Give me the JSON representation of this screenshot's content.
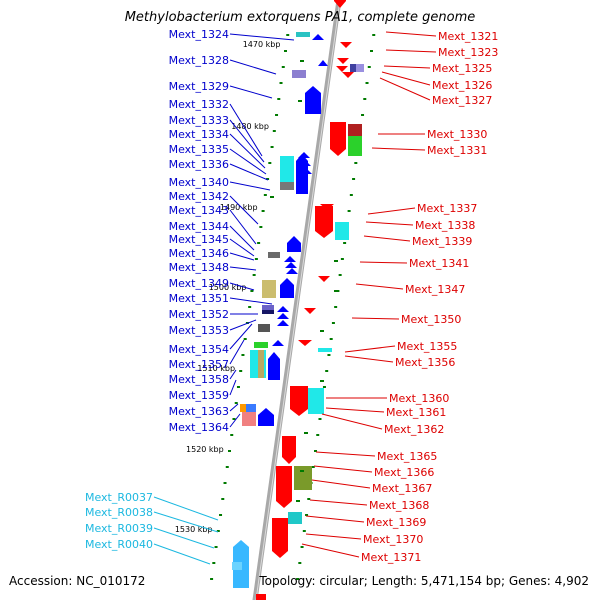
{
  "title": "Methylobacterium extorquens PA1, complete genome",
  "footer": {
    "accession": "Accession: NC_010172",
    "topology": "Topology: circular; Length: 5,471,154 bp; Genes: 4,902"
  },
  "colors": {
    "backbone": "#a8a8a8",
    "minus_strand": "#ff0000",
    "plus_strand": "#0000ff",
    "rna": "#38b8ff",
    "tick": "#007a00",
    "label_plus": "#0000cc",
    "label_minus": "#dd0000",
    "label_rna": "#1cb8e0"
  },
  "scale_labels": [
    "1470 kbp",
    "1480 kbp",
    "1490 kbp",
    "1500 kbp",
    "1510 kbp",
    "1520 kbp",
    "1530 kbp"
  ],
  "left_genes": [
    "Mext_1324",
    "Mext_1328",
    "Mext_1329",
    "Mext_1332",
    "Mext_1333",
    "Mext_1334",
    "Mext_1335",
    "Mext_1336",
    "Mext_1340",
    "Mext_1342",
    "Mext_1343",
    "Mext_1344",
    "Mext_1345",
    "Mext_1346",
    "Mext_1348",
    "Mext_1349",
    "Mext_1351",
    "Mext_1352",
    "Mext_1353",
    "Mext_1354",
    "Mext_1357",
    "Mext_1358",
    "Mext_1359",
    "Mext_1363",
    "Mext_1364"
  ],
  "rna_genes": [
    "Mext_R0037",
    "Mext_R0038",
    "Mext_R0039",
    "Mext_R0040"
  ],
  "right_genes": [
    "Mext_1321",
    "Mext_1323",
    "Mext_1325",
    "Mext_1326",
    "Mext_1327",
    "Mext_1330",
    "Mext_1331",
    "Mext_1337",
    "Mext_1338",
    "Mext_1339",
    "Mext_1341",
    "Mext_1347",
    "Mext_1350",
    "Mext_1355",
    "Mext_1356",
    "Mext_1360",
    "Mext_1361",
    "Mext_1362",
    "Mext_1365",
    "Mext_1366",
    "Mext_1367",
    "Mext_1368",
    "Mext_1369",
    "Mext_1370",
    "Mext_1371"
  ]
}
